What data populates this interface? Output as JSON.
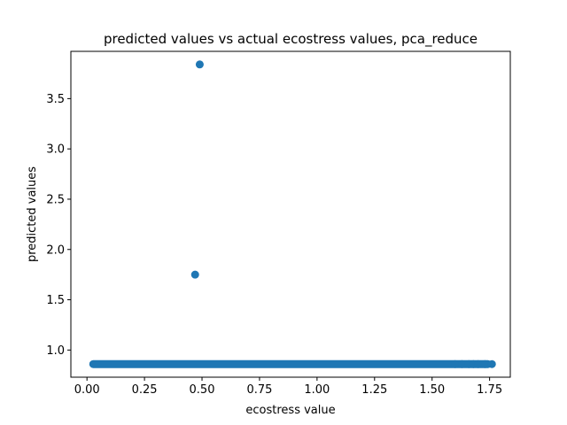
{
  "chart_data": {
    "type": "scatter",
    "title": "predicted values vs actual ecostress values, pca_reduce",
    "xlabel": "ecostress value",
    "ylabel": "predicted values",
    "xlim": [
      -0.07,
      1.84
    ],
    "ylim": [
      0.73,
      3.97
    ],
    "xticks": [
      0.0,
      0.25,
      0.5,
      0.75,
      1.0,
      1.25,
      1.5,
      1.75
    ],
    "xtick_labels": [
      "0.00",
      "0.25",
      "0.50",
      "0.75",
      "1.00",
      "1.25",
      "1.50",
      "1.75"
    ],
    "yticks": [
      1.0,
      1.5,
      2.0,
      2.5,
      3.0,
      3.5
    ],
    "ytick_labels": [
      "1.0",
      "1.5",
      "2.0",
      "2.5",
      "3.0",
      "3.5"
    ],
    "grid": false,
    "marker_color": "#1f77b4",
    "points": [
      {
        "x": 0.49,
        "y": 3.84
      },
      {
        "x": 0.47,
        "y": 1.75
      }
    ],
    "dense_band": {
      "x_from": 0.01,
      "x_to": 1.76,
      "y": 0.86
    },
    "sparse_band_points": [
      {
        "x": 1.6,
        "y": 0.86
      },
      {
        "x": 1.63,
        "y": 0.86
      },
      {
        "x": 1.66,
        "y": 0.86
      },
      {
        "x": 1.68,
        "y": 0.86
      },
      {
        "x": 1.7,
        "y": 0.86
      },
      {
        "x": 1.73,
        "y": 0.86
      },
      {
        "x": 1.76,
        "y": 0.86
      }
    ]
  }
}
